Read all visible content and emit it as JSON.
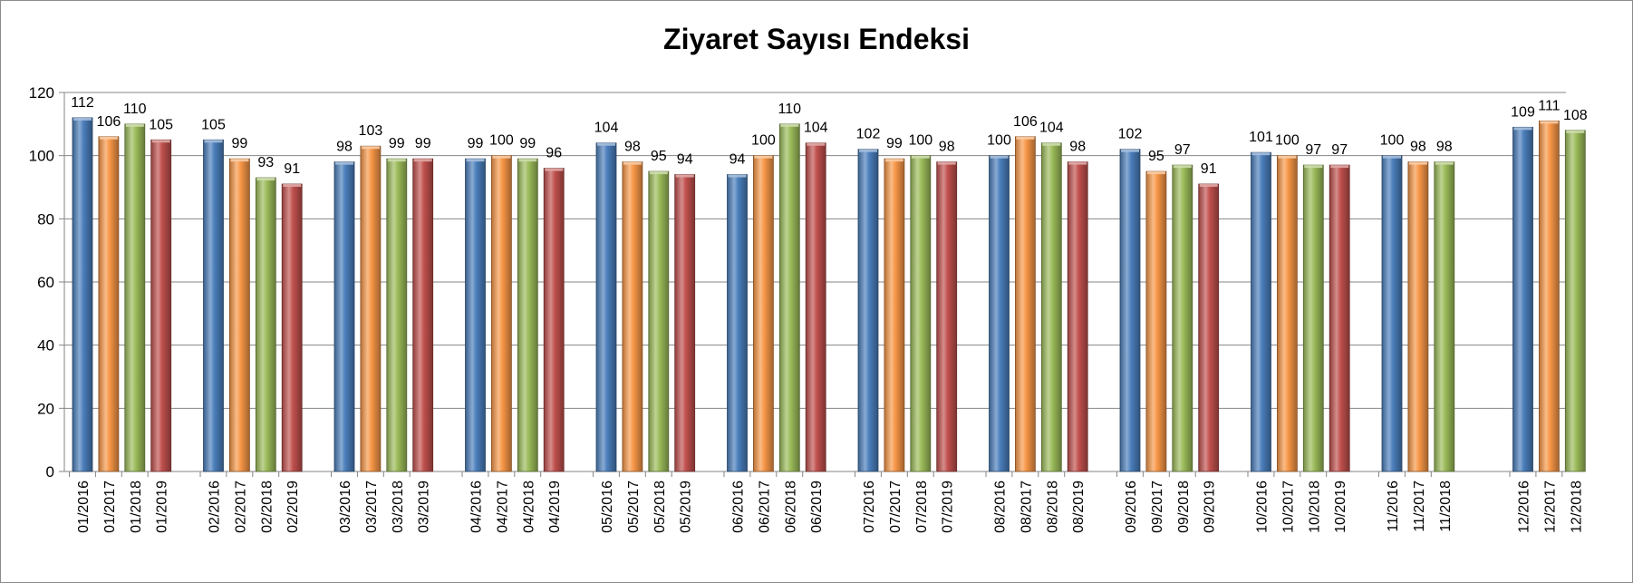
{
  "chart_data": {
    "type": "bar",
    "title": "Ziyaret Sayısı Endeksi",
    "xlabel": "",
    "ylabel": "",
    "ylim": [
      0,
      120
    ],
    "yticks": [
      0,
      20,
      40,
      60,
      80,
      100,
      120
    ],
    "grid": true,
    "legend": "none",
    "series_colors": [
      "#4a7ebb",
      "#f79646",
      "#9bbb59",
      "#c0504d"
    ],
    "groups": [
      {
        "bars": [
          {
            "label": "01/2016",
            "value": 112
          },
          {
            "label": "01/2017",
            "value": 106
          },
          {
            "label": "01/2018",
            "value": 110
          },
          {
            "label": "01/2019",
            "value": 105
          }
        ]
      },
      {
        "bars": [
          {
            "label": "02/2016",
            "value": 105
          },
          {
            "label": "02/2017",
            "value": 99
          },
          {
            "label": "02/2018",
            "value": 93
          },
          {
            "label": "02/2019",
            "value": 91
          }
        ]
      },
      {
        "bars": [
          {
            "label": "03/2016",
            "value": 98
          },
          {
            "label": "03/2017",
            "value": 103
          },
          {
            "label": "03/2018",
            "value": 99
          },
          {
            "label": "03/2019",
            "value": 99
          }
        ]
      },
      {
        "bars": [
          {
            "label": "04/2016",
            "value": 99
          },
          {
            "label": "04/2017",
            "value": 100
          },
          {
            "label": "04/2018",
            "value": 99
          },
          {
            "label": "04/2019",
            "value": 96
          }
        ]
      },
      {
        "bars": [
          {
            "label": "05/2016",
            "value": 104
          },
          {
            "label": "05/2017",
            "value": 98
          },
          {
            "label": "05/2018",
            "value": 95
          },
          {
            "label": "05/2019",
            "value": 94
          }
        ]
      },
      {
        "bars": [
          {
            "label": "06/2016",
            "value": 94
          },
          {
            "label": "06/2017",
            "value": 100
          },
          {
            "label": "06/2018",
            "value": 110
          },
          {
            "label": "06/2019",
            "value": 104
          }
        ]
      },
      {
        "bars": [
          {
            "label": "07/2016",
            "value": 102
          },
          {
            "label": "07/2017",
            "value": 99
          },
          {
            "label": "07/2018",
            "value": 100
          },
          {
            "label": "07/2019",
            "value": 98
          }
        ]
      },
      {
        "bars": [
          {
            "label": "08/2016",
            "value": 100
          },
          {
            "label": "08/2017",
            "value": 106
          },
          {
            "label": "08/2018",
            "value": 104
          },
          {
            "label": "08/2019",
            "value": 98
          }
        ]
      },
      {
        "bars": [
          {
            "label": "09/2016",
            "value": 102
          },
          {
            "label": "09/2017",
            "value": 95
          },
          {
            "label": "09/2018",
            "value": 97
          },
          {
            "label": "09/2019",
            "value": 91
          }
        ]
      },
      {
        "bars": [
          {
            "label": "10/2016",
            "value": 101
          },
          {
            "label": "10/2017",
            "value": 100
          },
          {
            "label": "10/2018",
            "value": 97
          },
          {
            "label": "10/2019",
            "value": 97
          }
        ]
      },
      {
        "bars": [
          {
            "label": "11/2016",
            "value": 100
          },
          {
            "label": "11/2017",
            "value": 98
          },
          {
            "label": "11/2018",
            "value": 98
          }
        ]
      },
      {
        "bars": [
          {
            "label": "12/2016",
            "value": 109
          },
          {
            "label": "12/2017",
            "value": 111
          },
          {
            "label": "12/2018",
            "value": 108
          }
        ]
      }
    ]
  }
}
